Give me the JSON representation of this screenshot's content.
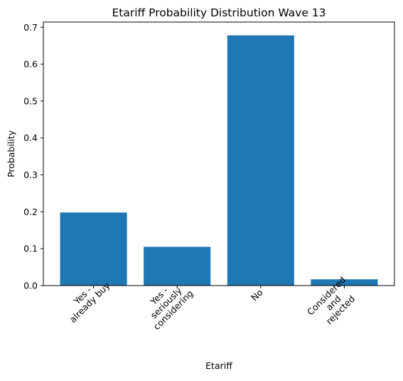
{
  "chart_data": {
    "type": "bar",
    "title": "Etariff Probability Distribution Wave 13",
    "xlabel": "Etariff",
    "ylabel": "Probability",
    "categories": [
      [
        "Yes -",
        "already buy"
      ],
      [
        "Yes -",
        "seriously",
        "considering"
      ],
      [
        "No"
      ],
      [
        "Considered",
        "and",
        "rejected"
      ]
    ],
    "values": [
      0.198,
      0.105,
      0.678,
      0.017
    ],
    "ylim": [
      0,
      0.714
    ],
    "yticks": [
      "0.0",
      "0.1",
      "0.2",
      "0.3",
      "0.4",
      "0.5",
      "0.6",
      "0.7"
    ],
    "bar_color": "#1f77b4",
    "grid": false,
    "legend": "none"
  }
}
